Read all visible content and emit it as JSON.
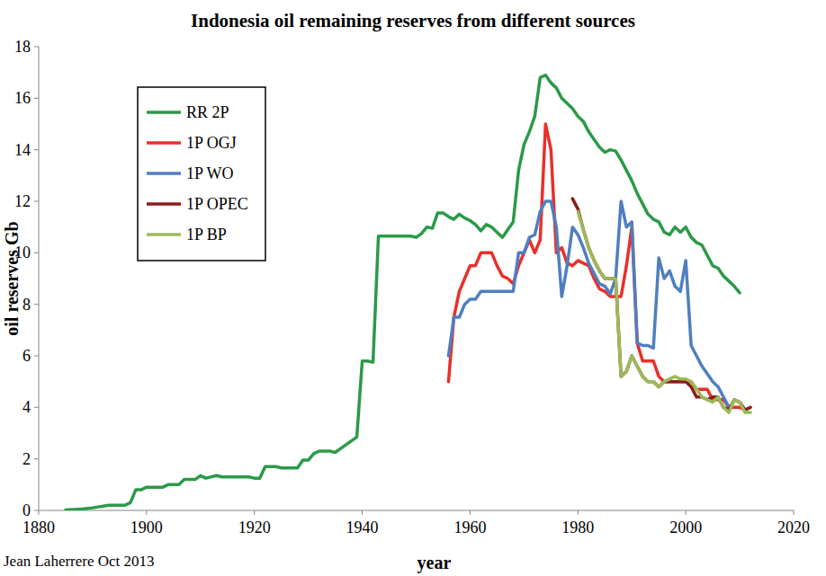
{
  "chart_data": {
    "type": "line",
    "title": "Indonesia oil remaining reserves from different sources",
    "x_label": "year",
    "y_label": "oil reserves Gb",
    "annotations": [
      "Jean Laherrere Oct 2013"
    ],
    "xlim": [
      1880,
      2020
    ],
    "xticks": [
      1880,
      1900,
      1920,
      1940,
      1960,
      1980,
      2000,
      2020
    ],
    "ylim": [
      0,
      18
    ],
    "yticks": [
      0,
      2,
      4,
      6,
      8,
      10,
      12,
      14,
      16,
      18
    ],
    "grid": false,
    "legend": "upper left",
    "series": [
      {
        "name": "RR 2P",
        "color": "#2b9a48",
        "x": [
          1885,
          1888,
          1890,
          1893,
          1896,
          1897,
          1898,
          1899,
          1900,
          1903,
          1904,
          1906,
          1907,
          1909,
          1910,
          1911,
          1913,
          1914,
          1919,
          1920,
          1921,
          1922,
          1924,
          1925,
          1928,
          1929,
          1930,
          1931,
          1932,
          1934,
          1935,
          1936,
          1937,
          1938,
          1939,
          1940,
          1941,
          1942,
          1943,
          1944,
          1949,
          1950,
          1951,
          1952,
          1953,
          1954,
          1955,
          1956,
          1957,
          1958,
          1959,
          1960,
          1961,
          1962,
          1963,
          1964,
          1965,
          1966,
          1967,
          1968,
          1969,
          1970,
          1971,
          1972,
          1973,
          1974,
          1975,
          1976,
          1977,
          1978,
          1979,
          1980,
          1981,
          1982,
          1983,
          1984,
          1985,
          1986,
          1987,
          1988,
          1989,
          1990,
          1991,
          1992,
          1993,
          1994,
          1995,
          1996,
          1997,
          1998,
          1999,
          2000,
          2001,
          2002,
          2003,
          2004,
          2005,
          2006,
          2007,
          2008,
          2009,
          2010
        ],
        "values": [
          0.02,
          0.05,
          0.1,
          0.2,
          0.2,
          0.3,
          0.8,
          0.8,
          0.9,
          0.9,
          1.0,
          1.0,
          1.2,
          1.2,
          1.35,
          1.25,
          1.35,
          1.3,
          1.3,
          1.25,
          1.25,
          1.7,
          1.7,
          1.65,
          1.65,
          1.95,
          1.95,
          2.2,
          2.3,
          2.3,
          2.25,
          2.4,
          2.55,
          2.7,
          2.85,
          5.8,
          5.8,
          5.75,
          10.65,
          10.65,
          10.65,
          10.6,
          10.75,
          11.0,
          10.95,
          11.55,
          11.55,
          11.4,
          11.3,
          11.5,
          11.35,
          11.25,
          11.1,
          10.85,
          11.1,
          11.0,
          10.8,
          10.6,
          10.9,
          11.2,
          13.2,
          14.2,
          14.7,
          15.3,
          16.8,
          16.9,
          16.6,
          16.4,
          16.0,
          15.8,
          15.6,
          15.3,
          15.1,
          14.7,
          14.4,
          14.1,
          13.9,
          14.0,
          13.95,
          13.6,
          13.2,
          12.8,
          12.3,
          11.9,
          11.5,
          11.3,
          11.2,
          10.8,
          10.7,
          11.0,
          10.8,
          11.0,
          10.6,
          10.4,
          10.3,
          9.9,
          9.5,
          9.4,
          9.1,
          8.9,
          8.7,
          8.45
        ]
      },
      {
        "name": "1P OGJ",
        "color": "#e8302a",
        "x": [
          1956,
          1957,
          1958,
          1959,
          1960,
          1961,
          1962,
          1963,
          1964,
          1965,
          1966,
          1967,
          1968,
          1969,
          1970,
          1971,
          1972,
          1973,
          1974,
          1975,
          1976,
          1977,
          1978,
          1979,
          1980,
          1981,
          1982,
          1983,
          1984,
          1985,
          1986,
          1987,
          1988,
          1989,
          1990,
          1991,
          1992,
          1993,
          1994,
          1995,
          1996,
          1997,
          1998,
          1999,
          2000,
          2001,
          2002,
          2003,
          2004,
          2005,
          2006,
          2007,
          2008,
          2009,
          2010,
          2011
        ],
        "values": [
          5.0,
          7.5,
          8.5,
          9.0,
          9.5,
          9.5,
          10.0,
          10.0,
          10.0,
          9.5,
          9.1,
          9.0,
          8.8,
          9.5,
          10.0,
          10.5,
          10.0,
          10.5,
          15.0,
          14.0,
          10.0,
          10.2,
          9.6,
          9.5,
          9.7,
          9.6,
          9.5,
          9.0,
          8.6,
          8.5,
          8.3,
          8.3,
          8.3,
          9.5,
          11.0,
          6.5,
          5.8,
          5.8,
          5.8,
          5.2,
          5.0,
          5.0,
          5.0,
          5.0,
          5.0,
          5.0,
          4.7,
          4.7,
          4.7,
          4.3,
          4.3,
          4.3,
          4.0,
          4.0,
          4.0,
          3.9
        ]
      },
      {
        "name": "1P WO",
        "color": "#4f7fc0",
        "x": [
          1956,
          1957,
          1958,
          1959,
          1960,
          1961,
          1962,
          1963,
          1964,
          1965,
          1966,
          1967,
          1968,
          1969,
          1970,
          1971,
          1972,
          1973,
          1974,
          1975,
          1976,
          1977,
          1978,
          1979,
          1980,
          1981,
          1982,
          1983,
          1984,
          1985,
          1986,
          1987,
          1988,
          1989,
          1990,
          1991,
          1992,
          1993,
          1994,
          1995,
          1996,
          1997,
          1998,
          1999,
          2000,
          2001,
          2002,
          2003,
          2004,
          2005,
          2006,
          2007,
          2008
        ],
        "values": [
          6.0,
          7.5,
          7.5,
          8.0,
          8.2,
          8.2,
          8.5,
          8.5,
          8.5,
          8.5,
          8.5,
          8.5,
          8.5,
          10.0,
          10.0,
          10.6,
          10.7,
          11.6,
          12.0,
          12.0,
          11.0,
          8.3,
          9.5,
          11.0,
          10.7,
          10.2,
          9.6,
          9.2,
          8.8,
          8.7,
          8.4,
          9.0,
          12.0,
          11.0,
          11.2,
          6.5,
          6.4,
          6.4,
          6.3,
          9.8,
          9.0,
          9.3,
          8.7,
          8.5,
          9.7,
          6.4,
          6.0,
          5.6,
          5.3,
          5.0,
          4.8,
          4.4,
          4.0
        ]
      },
      {
        "name": "1P OPEC",
        "color": "#8b1c1c",
        "x": [
          1979,
          1980,
          1981,
          1982,
          1983,
          1984,
          1985,
          1986,
          1987,
          1988,
          1989,
          1990,
          1991,
          1992,
          1993,
          1994,
          1995,
          1996,
          1997,
          1998,
          1999,
          2000,
          2001,
          2002,
          2003,
          2004,
          2005,
          2006,
          2007,
          2008,
          2009,
          2010,
          2011,
          2012
        ],
        "values": [
          12.1,
          11.7,
          10.9,
          10.2,
          9.7,
          9.3,
          9.0,
          9.0,
          9.0,
          5.2,
          5.4,
          6.0,
          5.6,
          5.2,
          5.0,
          5.0,
          4.8,
          5.0,
          5.0,
          5.0,
          5.0,
          5.0,
          4.8,
          4.4,
          4.4,
          4.3,
          4.4,
          4.4,
          4.0,
          3.9,
          4.3,
          4.2,
          3.9,
          4.0
        ]
      },
      {
        "name": "1P BP",
        "color": "#9bbb59",
        "x": [
          1980,
          1981,
          1982,
          1983,
          1984,
          1985,
          1986,
          1987,
          1988,
          1989,
          1990,
          1991,
          1992,
          1993,
          1994,
          1995,
          1996,
          1997,
          1998,
          1999,
          2000,
          2001,
          2002,
          2003,
          2004,
          2005,
          2006,
          2007,
          2008,
          2009,
          2010,
          2011,
          2012
        ],
        "values": [
          11.6,
          10.9,
          10.2,
          9.7,
          9.3,
          9.0,
          9.0,
          9.0,
          5.2,
          5.4,
          6.0,
          5.6,
          5.2,
          5.0,
          5.0,
          4.8,
          5.0,
          5.1,
          5.2,
          5.1,
          5.1,
          5.0,
          4.7,
          4.4,
          4.3,
          4.2,
          4.4,
          4.0,
          3.8,
          4.3,
          4.2,
          3.8,
          3.8
        ]
      }
    ]
  }
}
